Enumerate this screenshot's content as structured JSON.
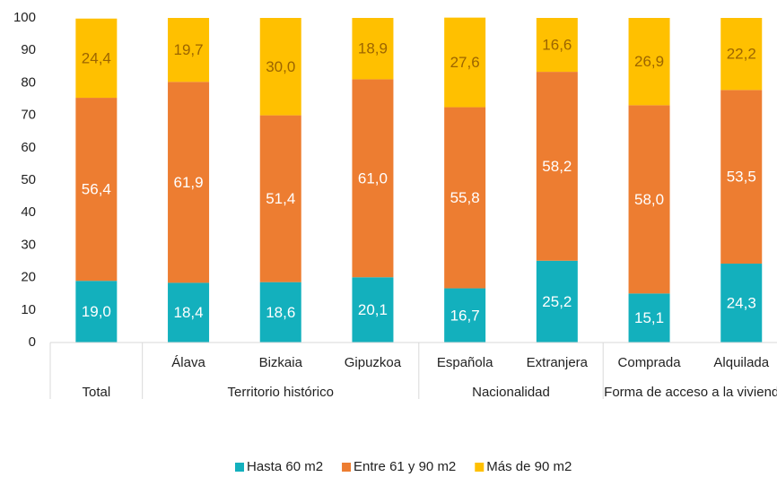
{
  "chart_data": {
    "type": "stacked_bar",
    "categories": [
      null,
      "Álava",
      "Bizkaia",
      "Gipuzkoa",
      "Española",
      "Extranjera",
      "Comprada",
      "Alquilada"
    ],
    "category_groups": [
      {
        "label": "Total",
        "span": 1
      },
      {
        "label": "Territorio histórico",
        "span": 3
      },
      {
        "label": "Nacionalidad",
        "span": 2
      },
      {
        "label": "Forma de acceso a la vivienda",
        "span": 2
      }
    ],
    "series": [
      {
        "name": "Hasta 60 m2",
        "color": "#13b0bd",
        "label_color": "#ffffff",
        "values": [
          19.0,
          18.4,
          18.6,
          20.1,
          16.7,
          25.2,
          15.1,
          24.3
        ],
        "value_labels": [
          "19,0",
          "18,4",
          "18,6",
          "20,1",
          "16,7",
          "25,2",
          "15,1",
          "24,3"
        ]
      },
      {
        "name": "Entre 61 y 90 m2",
        "color": "#ed7d31",
        "label_color": "#ffffff",
        "values": [
          56.4,
          61.9,
          51.4,
          61.0,
          55.8,
          58.2,
          58.0,
          53.5
        ],
        "value_labels": [
          "56,4",
          "61,9",
          "51,4",
          "61,0",
          "55,8",
          "58,2",
          "58,0",
          "53,5"
        ]
      },
      {
        "name": "Más de 90 m2",
        "color": "#ffc000",
        "label_color": "#9c6500",
        "values": [
          24.4,
          19.7,
          30.0,
          18.9,
          27.6,
          16.6,
          26.9,
          22.2
        ],
        "value_labels": [
          "24,4",
          "19,7",
          "30,0",
          "18,9",
          "27,6",
          "16,6",
          "26,9",
          "22,2"
        ]
      }
    ],
    "ylim": [
      0,
      100
    ],
    "yticks": [
      0,
      10,
      20,
      30,
      40,
      50,
      60,
      70,
      80,
      90,
      100
    ],
    "grid": false,
    "legend": "bottom"
  }
}
